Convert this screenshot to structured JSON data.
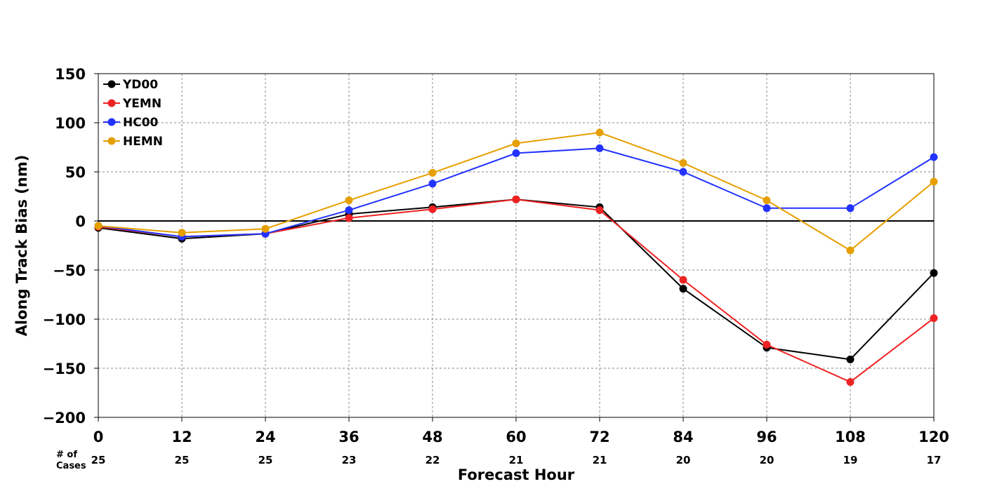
{
  "chart_data": {
    "type": "line",
    "xlabel": "Forecast Hour",
    "ylabel": "Along Track Bias (nm)",
    "x": [
      0,
      12,
      24,
      36,
      48,
      60,
      72,
      84,
      96,
      108,
      120
    ],
    "xlim": [
      0,
      120
    ],
    "ylim": [
      -200,
      150
    ],
    "yticks": [
      -200,
      -150,
      -100,
      -50,
      0,
      50,
      100,
      150
    ],
    "ytick_labels": [
      "−200",
      "−150",
      "−100",
      "−50",
      "0",
      "50",
      "100",
      "150"
    ],
    "grid": true,
    "legend_position": "top-left",
    "cases_label_line1": "# of",
    "cases_label_line2": "Cases",
    "cases": [
      25,
      25,
      25,
      23,
      22,
      21,
      21,
      20,
      20,
      19,
      17
    ],
    "series": [
      {
        "name": "YD00",
        "color": "#000000",
        "values": [
          -7,
          -18,
          -13,
          7,
          14,
          22,
          14,
          -69,
          -129,
          -141,
          -53
        ]
      },
      {
        "name": "YEMN",
        "color": "#ee2222",
        "values": [
          -6,
          -16,
          -13,
          3,
          12,
          22,
          11,
          -60,
          -126,
          -164,
          -99
        ]
      },
      {
        "name": "HC00",
        "color": "#2233ff",
        "values": [
          -5,
          -16,
          -13,
          11,
          38,
          69,
          74,
          50,
          13,
          13,
          65
        ]
      },
      {
        "name": "HEMN",
        "color": "#e69f00",
        "values": [
          -5,
          -12,
          -8,
          21,
          49,
          79,
          90,
          59,
          21,
          -30,
          40
        ]
      }
    ]
  }
}
